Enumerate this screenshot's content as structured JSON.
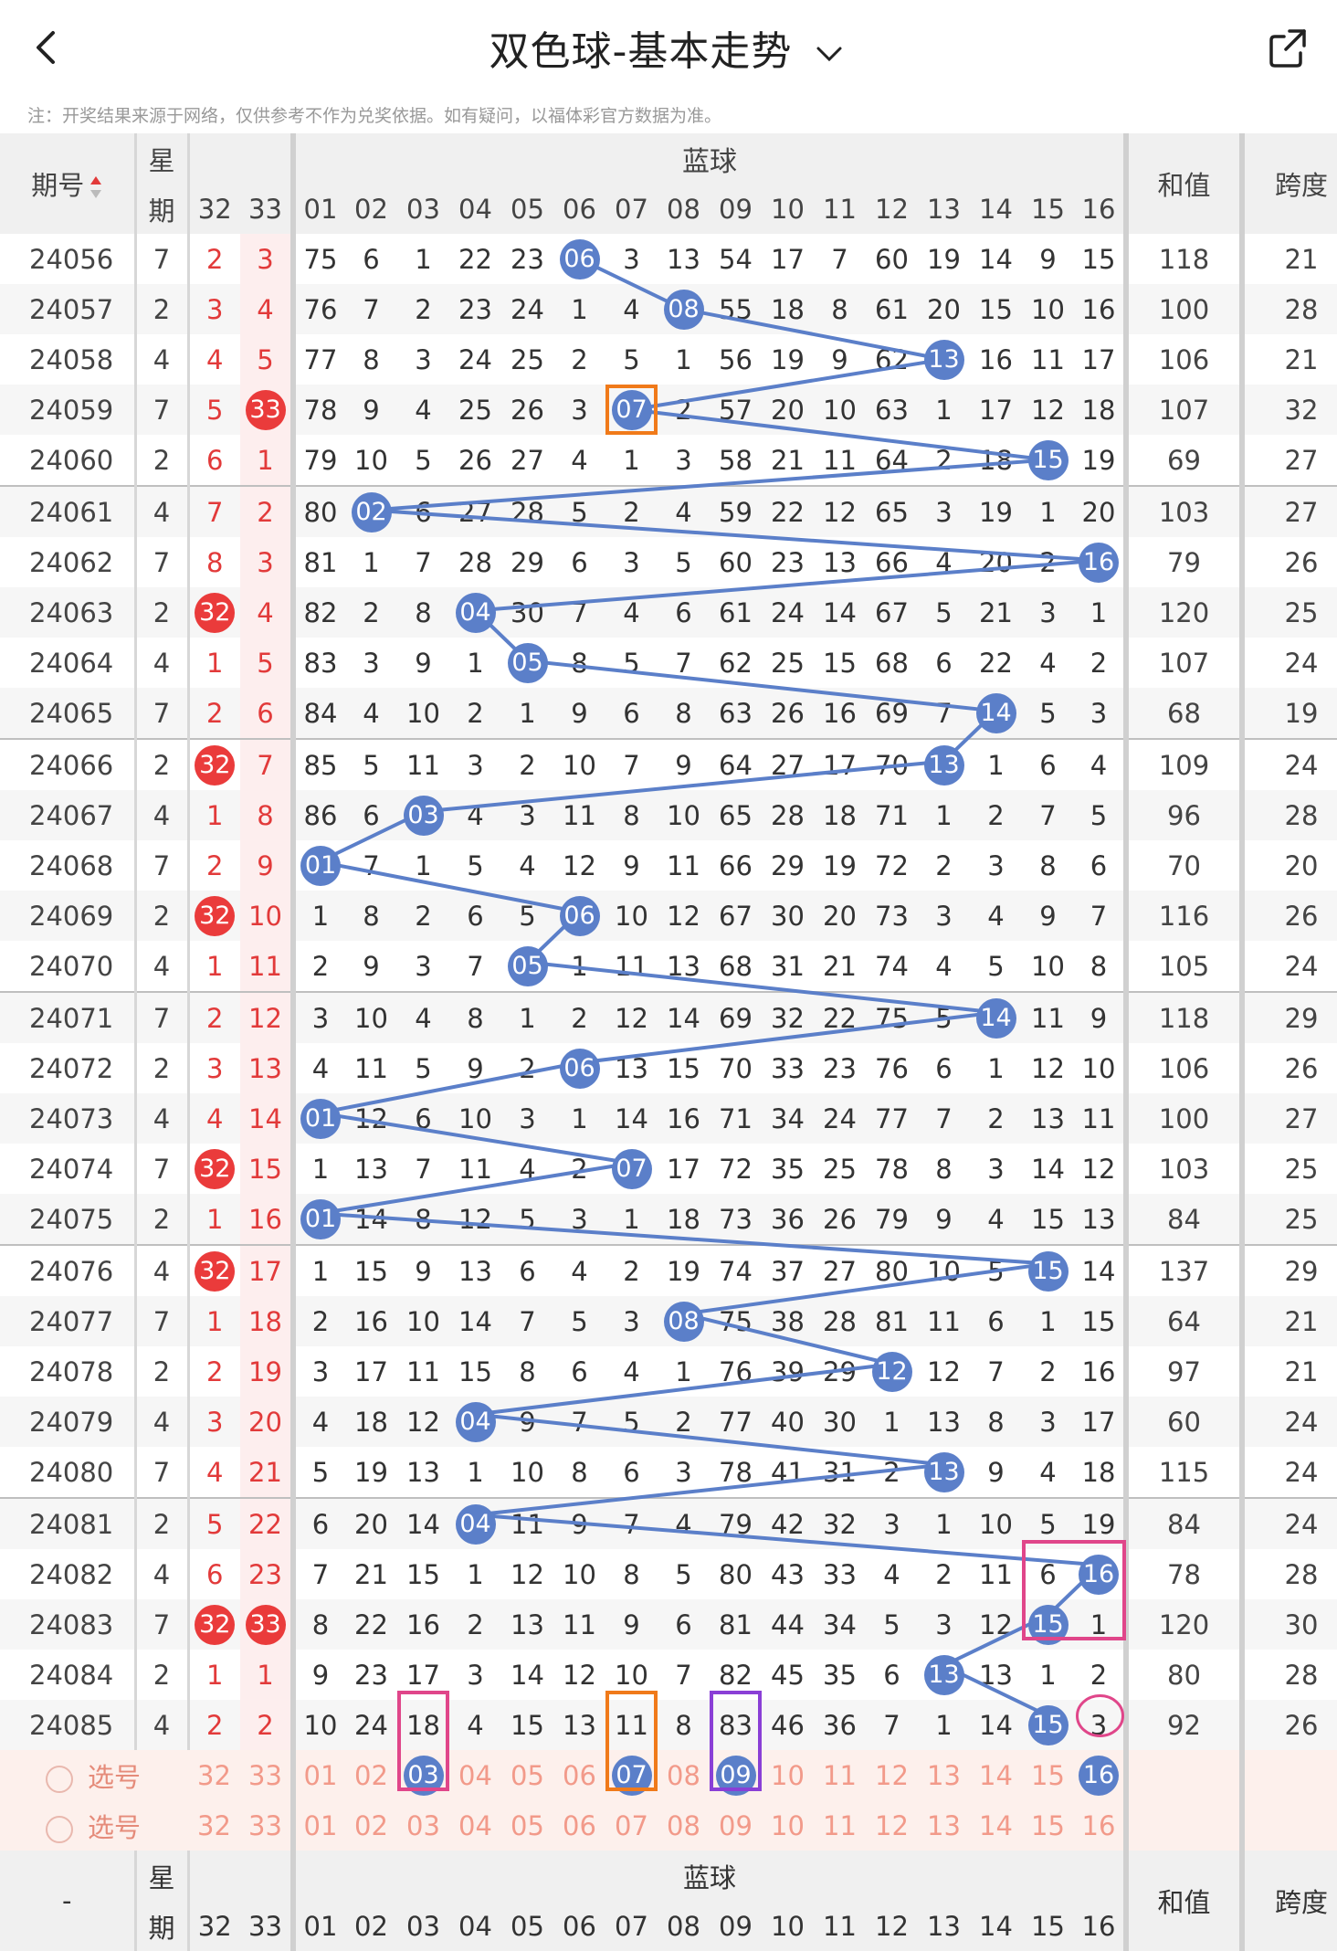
{
  "header": {
    "title": "双色球-基本走势"
  },
  "notice": "注：开奖结果来源于网络，仅供参考不作为兑奖依据。如有疑问，以福体彩官方数据为准。",
  "columns": {
    "issue": "期号",
    "week": "星期",
    "week_top": "星",
    "week_bottom": "期",
    "red": [
      "32",
      "33"
    ],
    "blue_group": "蓝球",
    "blue": [
      "01",
      "02",
      "03",
      "04",
      "05",
      "06",
      "07",
      "08",
      "09",
      "10",
      "11",
      "12",
      "13",
      "14",
      "15",
      "16"
    ],
    "sum": "和值",
    "span": "跨度",
    "dash": "-"
  },
  "rows": [
    {
      "issue": "24056",
      "week": "7",
      "r": [
        "2",
        "3"
      ],
      "b": [
        "75",
        "6",
        "1",
        "22",
        "23",
        "06",
        "3",
        "13",
        "54",
        "17",
        "7",
        "60",
        "19",
        "14",
        "9",
        "15"
      ],
      "hit": 6,
      "sum": "118",
      "span": "21"
    },
    {
      "issue": "24057",
      "week": "2",
      "r": [
        "3",
        "4"
      ],
      "b": [
        "76",
        "7",
        "2",
        "23",
        "24",
        "1",
        "4",
        "08",
        "55",
        "18",
        "8",
        "61",
        "20",
        "15",
        "10",
        "16"
      ],
      "hit": 8,
      "sum": "100",
      "span": "28"
    },
    {
      "issue": "24058",
      "week": "4",
      "r": [
        "4",
        "5"
      ],
      "b": [
        "77",
        "8",
        "3",
        "24",
        "25",
        "2",
        "5",
        "1",
        "56",
        "19",
        "9",
        "62",
        "13",
        "16",
        "11",
        "17"
      ],
      "hit": 13,
      "sum": "106",
      "span": "21"
    },
    {
      "issue": "24059",
      "week": "7",
      "r": [
        "5",
        "33"
      ],
      "b": [
        "78",
        "9",
        "4",
        "25",
        "26",
        "3",
        "07",
        "2",
        "57",
        "20",
        "10",
        "63",
        "1",
        "17",
        "12",
        "18"
      ],
      "hit": 7,
      "sum": "107",
      "span": "32"
    },
    {
      "issue": "24060",
      "week": "2",
      "r": [
        "6",
        "1"
      ],
      "b": [
        "79",
        "10",
        "5",
        "26",
        "27",
        "4",
        "1",
        "3",
        "58",
        "21",
        "11",
        "64",
        "2",
        "18",
        "15",
        "19"
      ],
      "hit": 15,
      "sum": "69",
      "span": "27"
    },
    {
      "issue": "24061",
      "week": "4",
      "r": [
        "7",
        "2"
      ],
      "b": [
        "80",
        "02",
        "6",
        "27",
        "28",
        "5",
        "2",
        "4",
        "59",
        "22",
        "12",
        "65",
        "3",
        "19",
        "1",
        "20"
      ],
      "hit": 2,
      "sum": "103",
      "span": "27"
    },
    {
      "issue": "24062",
      "week": "7",
      "r": [
        "8",
        "3"
      ],
      "b": [
        "81",
        "1",
        "7",
        "28",
        "29",
        "6",
        "3",
        "5",
        "60",
        "23",
        "13",
        "66",
        "4",
        "20",
        "2",
        "16"
      ],
      "hit": 16,
      "sum": "79",
      "span": "26"
    },
    {
      "issue": "24063",
      "week": "2",
      "r": [
        "32",
        "4"
      ],
      "b": [
        "82",
        "2",
        "8",
        "04",
        "30",
        "7",
        "4",
        "6",
        "61",
        "24",
        "14",
        "67",
        "5",
        "21",
        "3",
        "1"
      ],
      "hit": 4,
      "sum": "120",
      "span": "25"
    },
    {
      "issue": "24064",
      "week": "4",
      "r": [
        "1",
        "5"
      ],
      "b": [
        "83",
        "3",
        "9",
        "1",
        "05",
        "8",
        "5",
        "7",
        "62",
        "25",
        "15",
        "68",
        "6",
        "22",
        "4",
        "2"
      ],
      "hit": 5,
      "sum": "107",
      "span": "24"
    },
    {
      "issue": "24065",
      "week": "7",
      "r": [
        "2",
        "6"
      ],
      "b": [
        "84",
        "4",
        "10",
        "2",
        "1",
        "9",
        "6",
        "8",
        "63",
        "26",
        "16",
        "69",
        "7",
        "14",
        "5",
        "3"
      ],
      "hit": 14,
      "sum": "68",
      "span": "19"
    },
    {
      "issue": "24066",
      "week": "2",
      "r": [
        "32",
        "7"
      ],
      "b": [
        "85",
        "5",
        "11",
        "3",
        "2",
        "10",
        "7",
        "9",
        "64",
        "27",
        "17",
        "70",
        "13",
        "1",
        "6",
        "4"
      ],
      "hit": 13,
      "sum": "109",
      "span": "24"
    },
    {
      "issue": "24067",
      "week": "4",
      "r": [
        "1",
        "8"
      ],
      "b": [
        "86",
        "6",
        "03",
        "4",
        "3",
        "11",
        "8",
        "10",
        "65",
        "28",
        "18",
        "71",
        "1",
        "2",
        "7",
        "5"
      ],
      "hit": 3,
      "sum": "96",
      "span": "28"
    },
    {
      "issue": "24068",
      "week": "7",
      "r": [
        "2",
        "9"
      ],
      "b": [
        "01",
        "7",
        "1",
        "5",
        "4",
        "12",
        "9",
        "11",
        "66",
        "29",
        "19",
        "72",
        "2",
        "3",
        "8",
        "6"
      ],
      "hit": 1,
      "sum": "70",
      "span": "20"
    },
    {
      "issue": "24069",
      "week": "2",
      "r": [
        "32",
        "10"
      ],
      "b": [
        "1",
        "8",
        "2",
        "6",
        "5",
        "06",
        "10",
        "12",
        "67",
        "30",
        "20",
        "73",
        "3",
        "4",
        "9",
        "7"
      ],
      "hit": 6,
      "sum": "116",
      "span": "26"
    },
    {
      "issue": "24070",
      "week": "4",
      "r": [
        "1",
        "11"
      ],
      "b": [
        "2",
        "9",
        "3",
        "7",
        "05",
        "1",
        "11",
        "13",
        "68",
        "31",
        "21",
        "74",
        "4",
        "5",
        "10",
        "8"
      ],
      "hit": 5,
      "sum": "105",
      "span": "24"
    },
    {
      "issue": "24071",
      "week": "7",
      "r": [
        "2",
        "12"
      ],
      "b": [
        "3",
        "10",
        "4",
        "8",
        "1",
        "2",
        "12",
        "14",
        "69",
        "32",
        "22",
        "75",
        "5",
        "14",
        "11",
        "9"
      ],
      "hit": 14,
      "sum": "118",
      "span": "29"
    },
    {
      "issue": "24072",
      "week": "2",
      "r": [
        "3",
        "13"
      ],
      "b": [
        "4",
        "11",
        "5",
        "9",
        "2",
        "06",
        "13",
        "15",
        "70",
        "33",
        "23",
        "76",
        "6",
        "1",
        "12",
        "10"
      ],
      "hit": 6,
      "sum": "106",
      "span": "26"
    },
    {
      "issue": "24073",
      "week": "4",
      "r": [
        "4",
        "14"
      ],
      "b": [
        "01",
        "12",
        "6",
        "10",
        "3",
        "1",
        "14",
        "16",
        "71",
        "34",
        "24",
        "77",
        "7",
        "2",
        "13",
        "11"
      ],
      "hit": 1,
      "sum": "100",
      "span": "27"
    },
    {
      "issue": "24074",
      "week": "7",
      "r": [
        "32",
        "15"
      ],
      "b": [
        "1",
        "13",
        "7",
        "11",
        "4",
        "2",
        "07",
        "17",
        "72",
        "35",
        "25",
        "78",
        "8",
        "3",
        "14",
        "12"
      ],
      "hit": 7,
      "sum": "103",
      "span": "25"
    },
    {
      "issue": "24075",
      "week": "2",
      "r": [
        "1",
        "16"
      ],
      "b": [
        "01",
        "14",
        "8",
        "12",
        "5",
        "3",
        "1",
        "18",
        "73",
        "36",
        "26",
        "79",
        "9",
        "4",
        "15",
        "13"
      ],
      "hit": 1,
      "sum": "84",
      "span": "25"
    },
    {
      "issue": "24076",
      "week": "4",
      "r": [
        "32",
        "17"
      ],
      "b": [
        "1",
        "15",
        "9",
        "13",
        "6",
        "4",
        "2",
        "19",
        "74",
        "37",
        "27",
        "80",
        "10",
        "5",
        "15",
        "14"
      ],
      "hit": 15,
      "sum": "137",
      "span": "29"
    },
    {
      "issue": "24077",
      "week": "7",
      "r": [
        "1",
        "18"
      ],
      "b": [
        "2",
        "16",
        "10",
        "14",
        "7",
        "5",
        "3",
        "08",
        "75",
        "38",
        "28",
        "81",
        "11",
        "6",
        "1",
        "15"
      ],
      "hit": 8,
      "sum": "64",
      "span": "21"
    },
    {
      "issue": "24078",
      "week": "2",
      "r": [
        "2",
        "19"
      ],
      "b": [
        "3",
        "17",
        "11",
        "15",
        "8",
        "6",
        "4",
        "1",
        "76",
        "39",
        "29",
        "12",
        "12",
        "7",
        "2",
        "16"
      ],
      "hit": 12,
      "sum": "97",
      "span": "21"
    },
    {
      "issue": "24079",
      "week": "4",
      "r": [
        "3",
        "20"
      ],
      "b": [
        "4",
        "18",
        "12",
        "04",
        "9",
        "7",
        "5",
        "2",
        "77",
        "40",
        "30",
        "1",
        "13",
        "8",
        "3",
        "17"
      ],
      "hit": 4,
      "sum": "60",
      "span": "24"
    },
    {
      "issue": "24080",
      "week": "7",
      "r": [
        "4",
        "21"
      ],
      "b": [
        "5",
        "19",
        "13",
        "1",
        "10",
        "8",
        "6",
        "3",
        "78",
        "41",
        "31",
        "2",
        "13",
        "9",
        "4",
        "18"
      ],
      "hit": 13,
      "sum": "115",
      "span": "24"
    },
    {
      "issue": "24081",
      "week": "2",
      "r": [
        "5",
        "22"
      ],
      "b": [
        "6",
        "20",
        "14",
        "04",
        "11",
        "9",
        "7",
        "4",
        "79",
        "42",
        "32",
        "3",
        "1",
        "10",
        "5",
        "19"
      ],
      "hit": 4,
      "sum": "84",
      "span": "24"
    },
    {
      "issue": "24082",
      "week": "4",
      "r": [
        "6",
        "23"
      ],
      "b": [
        "7",
        "21",
        "15",
        "1",
        "12",
        "10",
        "8",
        "5",
        "80",
        "43",
        "33",
        "4",
        "2",
        "11",
        "6",
        "16"
      ],
      "hit": 16,
      "sum": "78",
      "span": "28"
    },
    {
      "issue": "24083",
      "week": "7",
      "r": [
        "32",
        "33"
      ],
      "b": [
        "8",
        "22",
        "16",
        "2",
        "13",
        "11",
        "9",
        "6",
        "81",
        "44",
        "34",
        "5",
        "3",
        "12",
        "15",
        "1"
      ],
      "hit": 15,
      "sum": "120",
      "span": "30"
    },
    {
      "issue": "24084",
      "week": "2",
      "r": [
        "1",
        "1"
      ],
      "b": [
        "9",
        "23",
        "17",
        "3",
        "14",
        "12",
        "10",
        "7",
        "82",
        "45",
        "35",
        "6",
        "13",
        "13",
        "1",
        "2"
      ],
      "hit": 13,
      "sum": "80",
      "span": "28"
    },
    {
      "issue": "24085",
      "week": "4",
      "r": [
        "2",
        "2"
      ],
      "b": [
        "10",
        "24",
        "18",
        "4",
        "15",
        "13",
        "11",
        "8",
        "83",
        "46",
        "36",
        "7",
        "1",
        "14",
        "15",
        "3"
      ],
      "hit": 15,
      "sum": "92",
      "span": "26"
    }
  ],
  "pick_label": "选号",
  "pick_selected": [
    3,
    7,
    9,
    16
  ],
  "colors": {
    "accent_blue": "#5b7fc9",
    "red_ball": "#ea3b3b",
    "box_pink": "#e0468a",
    "box_orange": "#f07a1a",
    "box_purple": "#8a3fd6"
  }
}
